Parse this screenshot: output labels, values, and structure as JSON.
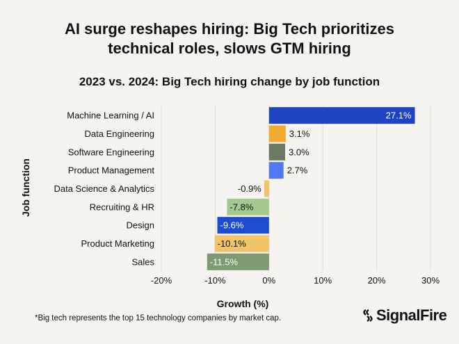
{
  "title_line1": "AI surge reshapes hiring: Big Tech prioritizes",
  "title_line2": "technical roles, slows GTM hiring",
  "footnote": "*Big tech represents the top 15 technology companies by market cap.",
  "logo": "SignalFire",
  "chart_data": {
    "type": "bar",
    "orientation": "horizontal",
    "title": "2023 vs. 2024: Big Tech hiring change by job function",
    "xlabel": "Growth (%)",
    "ylabel": "Job function",
    "xlim": [
      -20,
      30
    ],
    "xticks": [
      -20,
      -10,
      0,
      10,
      20,
      30
    ],
    "xtick_labels": [
      "-20%",
      "-10%",
      "0%",
      "10%",
      "20%",
      "30%"
    ],
    "grid": "vertical",
    "categories": [
      "Machine Learning / AI",
      "Data Engineering",
      "Software Engineering",
      "Product Management",
      "Data Science & Analytics",
      "Recruiting & HR",
      "Design",
      "Product Marketing",
      "Sales"
    ],
    "values": [
      27.1,
      3.1,
      3.0,
      2.7,
      -0.9,
      -7.8,
      -9.6,
      -10.1,
      -11.5
    ],
    "data_labels": [
      "27.1%",
      "3.1%",
      "3.0%",
      "2.7%",
      "-0.9%",
      "-7.8%",
      "-9.6%",
      "-10.1%",
      "-11.5%"
    ],
    "colors": [
      "#1f44c2",
      "#f0ad32",
      "#6b7a62",
      "#5078f0",
      "#f2c46a",
      "#a3c98e",
      "#1f4bd0",
      "#f2c46a",
      "#7e9a70"
    ]
  }
}
